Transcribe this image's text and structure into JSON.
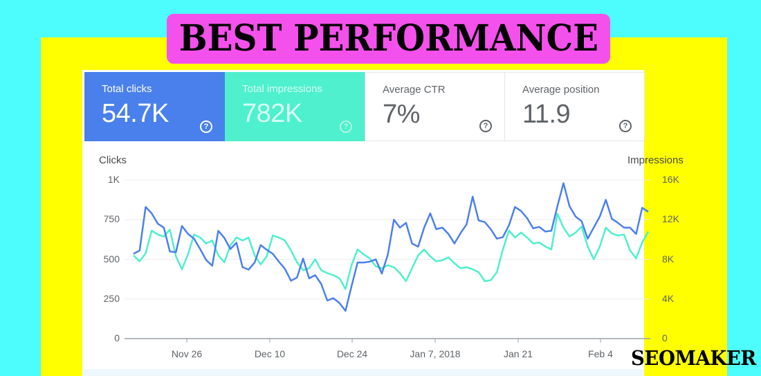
{
  "banner": {
    "title": "BEST PERFORMANCE"
  },
  "logo": {
    "text": "SEOMAKER"
  },
  "colors": {
    "background": "#4dfdfd",
    "frame": "#ffff00",
    "banner": "#f451ec",
    "clicks": "#4a80ec",
    "impressions": "#4ef0cd"
  },
  "metrics": [
    {
      "label": "Total clicks",
      "value": "54.7K",
      "help_icon": "help-circle-icon",
      "selected": true
    },
    {
      "label": "Total impressions",
      "value": "782K",
      "help_icon": "help-circle-icon",
      "selected": true
    },
    {
      "label": "Average CTR",
      "value": "7%",
      "help_icon": "help-circle-icon",
      "selected": false
    },
    {
      "label": "Average position",
      "value": "11.9",
      "help_icon": "help-circle-icon",
      "selected": false
    }
  ],
  "chart_data": {
    "type": "line",
    "title": "",
    "xlabel": "",
    "ylabel": "Clicks",
    "y2label": "Impressions",
    "ylim": [
      0,
      1000
    ],
    "y2lim": [
      0,
      16000
    ],
    "y_ticks": [
      "0",
      "250",
      "500",
      "750",
      "1K"
    ],
    "y2_ticks": [
      "0",
      "4K",
      "8K",
      "12K",
      "16K"
    ],
    "x_tick_labels": [
      "Nov 26",
      "Dec 10",
      "Dec 24",
      "Jan 7, 2018",
      "Jan 21",
      "Feb 4"
    ],
    "grid": true,
    "legend": "metric cards above chart",
    "x_start": "Nov 17, 2017",
    "x_end": "Feb 12, 2018",
    "series": [
      {
        "name": "Clicks",
        "axis": "left",
        "color": "#4a80ec",
        "values": [
          535,
          555,
          830,
          790,
          725,
          700,
          550,
          545,
          710,
          660,
          630,
          565,
          495,
          460,
          680,
          635,
          565,
          605,
          450,
          435,
          480,
          590,
          560,
          535,
          485,
          440,
          365,
          385,
          505,
          380,
          400,
          345,
          240,
          255,
          225,
          175,
          330,
          480,
          480,
          485,
          500,
          410,
          530,
          750,
          700,
          730,
          600,
          580,
          700,
          790,
          690,
          700,
          660,
          600,
          665,
          720,
          895,
          745,
          735,
          690,
          630,
          640,
          715,
          830,
          805,
          760,
          695,
          705,
          675,
          680,
          835,
          980,
          835,
          770,
          740,
          630,
          700,
          770,
          875,
          755,
          730,
          700,
          700,
          660,
          825,
          800
        ]
      },
      {
        "name": "Impressions",
        "axis": "right",
        "color": "#4ef0cd",
        "values": [
          8400,
          7800,
          8600,
          10900,
          10500,
          10300,
          11000,
          8300,
          7000,
          8500,
          10500,
          10200,
          9600,
          9900,
          8400,
          7700,
          9400,
          10200,
          9900,
          10200,
          8400,
          7500,
          8300,
          10400,
          10200,
          9900,
          8900,
          7700,
          6900,
          7100,
          8000,
          6900,
          6600,
          6400,
          6100,
          5000,
          7400,
          9000,
          8500,
          8100,
          7300,
          7100,
          7400,
          7200,
          6600,
          5800,
          7100,
          8400,
          9000,
          8300,
          7800,
          7900,
          8200,
          7600,
          7100,
          7200,
          7000,
          6700,
          5800,
          5900,
          6700,
          9000,
          10900,
          10200,
          10700,
          10200,
          9600,
          9700,
          9300,
          9000,
          12600,
          11200,
          10300,
          10700,
          11300,
          9300,
          8000,
          9300,
          11200,
          10600,
          10400,
          10500,
          8900,
          8100,
          9700,
          10800
        ]
      }
    ]
  }
}
